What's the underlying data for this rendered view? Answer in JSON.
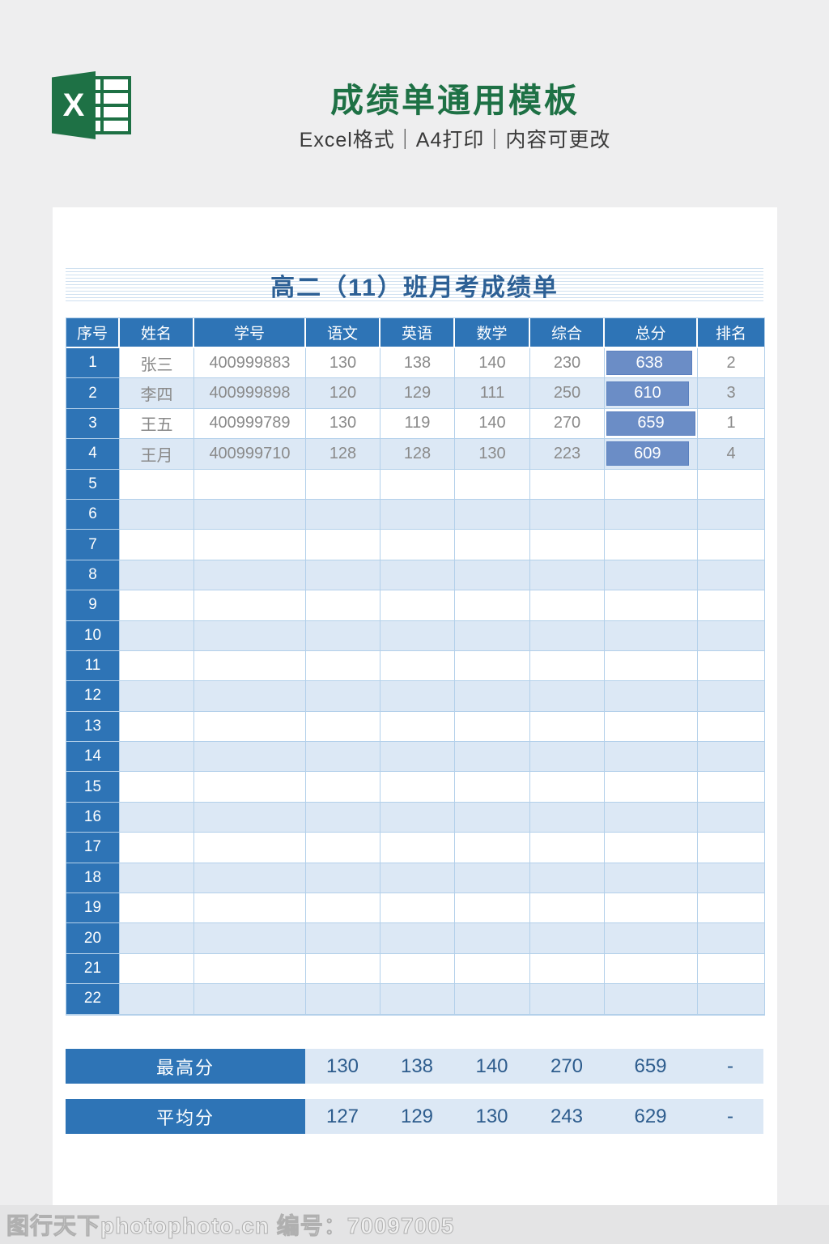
{
  "promo": {
    "title": "成绩单通用模板",
    "subtitle": "Excel格式｜A4打印｜内容可更改",
    "excel_icon_letter": "X"
  },
  "sheet": {
    "title": "高二（11）班月考成绩单",
    "columns": [
      "序号",
      "姓名",
      "学号",
      "语文",
      "英语",
      "数学",
      "综合",
      "总分",
      "排名"
    ],
    "row_count": 22,
    "students": [
      {
        "no": "1",
        "name": "张三",
        "student_id": "400999883",
        "scores": [
          "130",
          "138",
          "140",
          "230"
        ],
        "total": "638",
        "bar_pct": 96.8,
        "rank": "2"
      },
      {
        "no": "2",
        "name": "李四",
        "student_id": "400999898",
        "scores": [
          "120",
          "129",
          "111",
          "250"
        ],
        "total": "610",
        "bar_pct": 92.6,
        "rank": "3"
      },
      {
        "no": "3",
        "name": "王五",
        "student_id": "400999789",
        "scores": [
          "130",
          "119",
          "140",
          "270"
        ],
        "total": "659",
        "bar_pct": 100,
        "rank": "1"
      },
      {
        "no": "4",
        "name": "王月",
        "student_id": "400999710",
        "scores": [
          "128",
          "128",
          "130",
          "223"
        ],
        "total": "609",
        "bar_pct": 92.4,
        "rank": "4"
      }
    ],
    "summary": [
      {
        "label": "最高分",
        "values": [
          "130",
          "138",
          "140",
          "270",
          "659",
          "-"
        ]
      },
      {
        "label": "平均分",
        "values": [
          "127",
          "129",
          "130",
          "243",
          "629",
          "-"
        ]
      }
    ]
  },
  "footer": {
    "watermark": "图行天下photophoto.cn 编号：70097005"
  },
  "colors": {
    "brand_green": "#1e7145",
    "header_blue": "#2e74b6",
    "stripe_blue": "#dce8f5",
    "grid_blue": "#b3d0ea",
    "bar_blue": "#6b8dc6",
    "summary_text_blue": "#2d5c8d",
    "sheet_title_blue": "#2d6095",
    "page_bg": "#eeeeef"
  }
}
